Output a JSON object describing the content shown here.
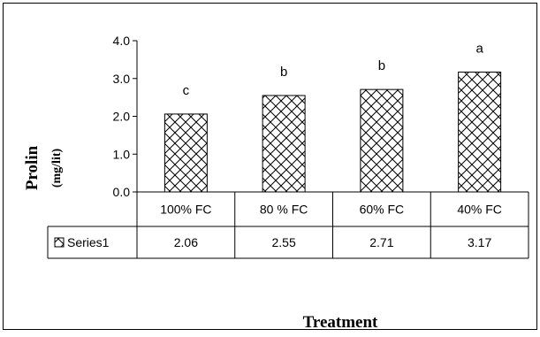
{
  "chart_data": {
    "type": "bar",
    "categories": [
      "100% FC",
      "80 % FC",
      "60% FC",
      "40% FC"
    ],
    "series": [
      {
        "name": "Series1",
        "values": [
          2.06,
          2.55,
          2.71,
          3.17
        ]
      }
    ],
    "value_labels": [
      "2.06",
      "2.55",
      "2.71",
      "3.17"
    ],
    "significance_letters": [
      "c",
      "b",
      "b",
      "a"
    ],
    "ylabel": "Prolin",
    "ylabel_unit": "(mg/lit)",
    "xlabel": "Treatment",
    "ylim": [
      0,
      4
    ],
    "yticks": [
      "0.0",
      "1.0",
      "2.0",
      "3.0",
      "4.0"
    ],
    "grid": false,
    "legend": "data-table"
  },
  "colors": {
    "bar_fill": "#ffffff",
    "hatch": "#000000",
    "axis": "#000000"
  }
}
